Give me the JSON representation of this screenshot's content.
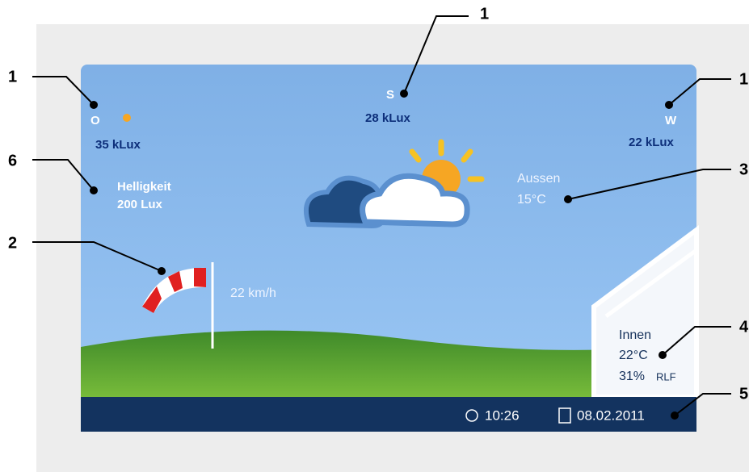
{
  "callouts": [
    "1",
    "1",
    "1",
    "6",
    "2",
    "3",
    "4",
    "5"
  ],
  "screen": {
    "east": {
      "direction": "O",
      "brightness": "35 kLux"
    },
    "south": {
      "direction": "S",
      "brightness": "28 kLux"
    },
    "west": {
      "direction": "W",
      "brightness": "22 kLux"
    },
    "twilight": {
      "label": "Helligkeit",
      "value": "200 Lux"
    },
    "outside": {
      "label": "Aussen",
      "temperature": "15°C"
    },
    "wind": "22 km/h",
    "inside": {
      "label": "Innen",
      "temperature": "22°C",
      "humidity": "31%",
      "humidity_unit": "RLF"
    },
    "status_bar": {
      "time": "10:26",
      "date": "08.02.2011"
    }
  }
}
